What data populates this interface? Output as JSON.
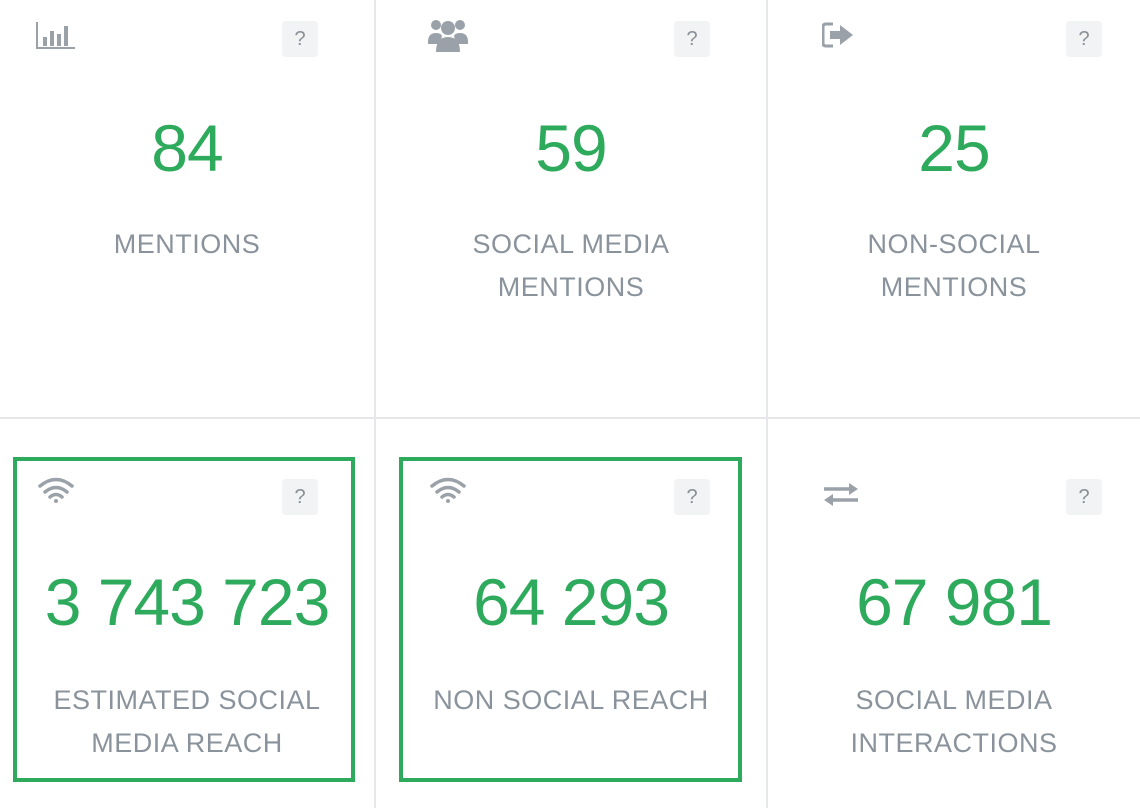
{
  "colors": {
    "accent": "#2eaa5c",
    "label": "#8a939c",
    "icon": "#9aa1a9",
    "divider": "#e5e7ea"
  },
  "help_label": "?",
  "cards": [
    {
      "id": "mentions",
      "icon": "bar-chart-icon",
      "value": "84",
      "label_lines": [
        "MENTIONS",
        ""
      ]
    },
    {
      "id": "social-media-mentions",
      "icon": "users-group-icon",
      "value": "59",
      "label_lines": [
        "SOCIAL MEDIA",
        "MENTIONS"
      ]
    },
    {
      "id": "non-social-mentions",
      "icon": "sign-out-icon",
      "value": "25",
      "label_lines": [
        "NON-SOCIAL",
        "MENTIONS"
      ]
    },
    {
      "id": "estimated-social-media-reach",
      "icon": "wifi-icon",
      "value": "3 743 723",
      "label_lines": [
        "ESTIMATED SOCIAL",
        "MEDIA REACH"
      ],
      "highlighted": true
    },
    {
      "id": "non-social-reach",
      "icon": "wifi-icon",
      "value": "64 293",
      "label_lines": [
        "NON SOCIAL REACH",
        ""
      ],
      "highlighted": true
    },
    {
      "id": "social-media-interactions",
      "icon": "exchange-arrows-icon",
      "value": "67 981",
      "label_lines": [
        "SOCIAL MEDIA",
        "INTERACTIONS"
      ]
    }
  ]
}
